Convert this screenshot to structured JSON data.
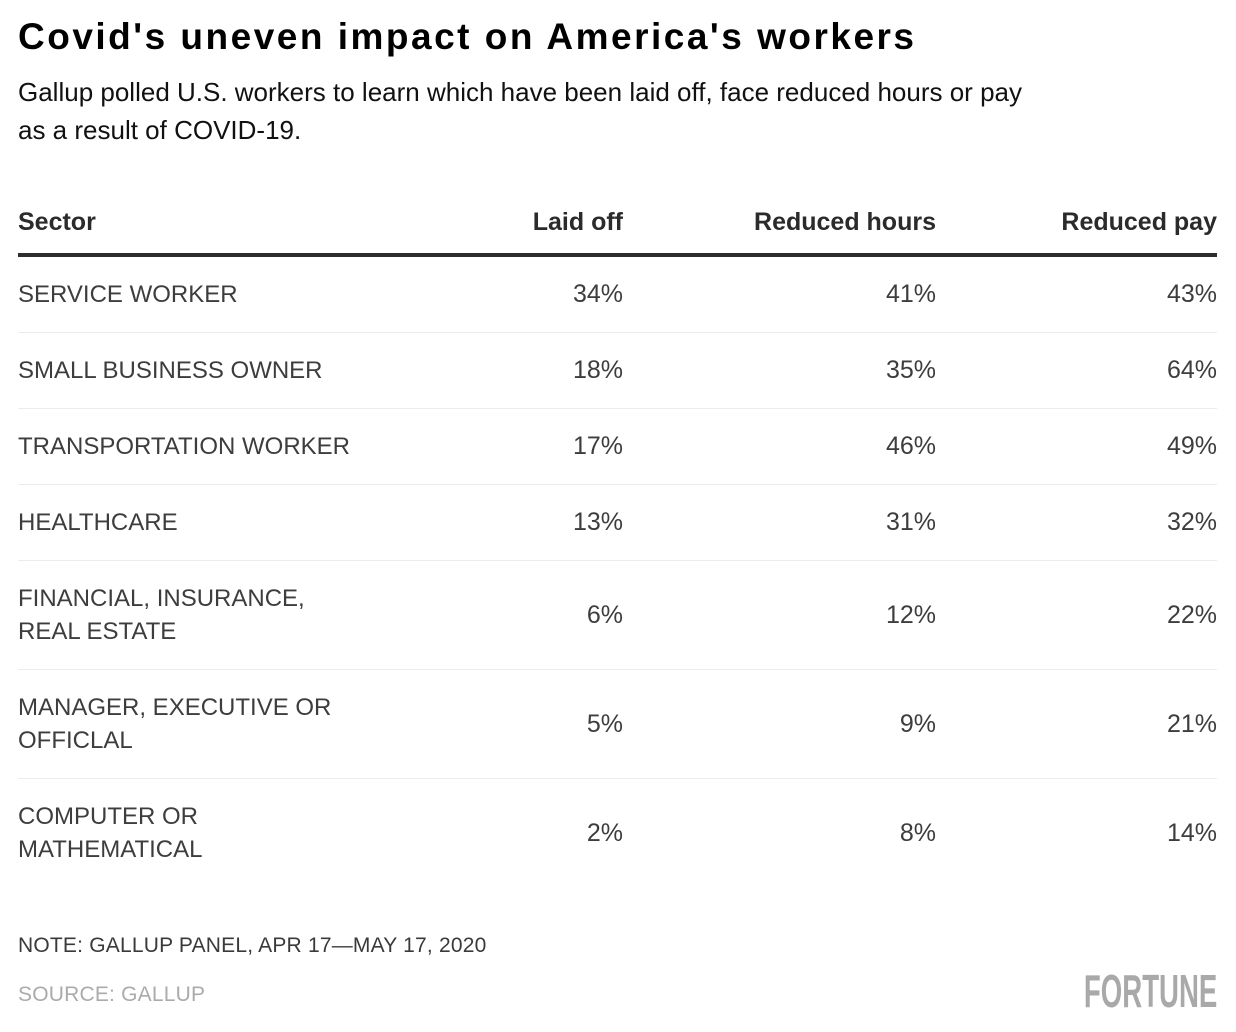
{
  "header": {
    "title": "Covid's uneven impact on America's workers",
    "subtitle_line1": "Gallup polled U.S. workers to learn which have been laid off, face reduced hours or pay",
    "subtitle_line2": "as a result of COVID-19."
  },
  "table": {
    "columns": {
      "sector": "Sector",
      "laid_off": "Laid off",
      "reduced_hours": "Reduced hours",
      "reduced_pay": "Reduced pay"
    },
    "rows": [
      {
        "sector": "SERVICE WORKER",
        "laid_off": "34%",
        "reduced_hours": "41%",
        "reduced_pay": "43%"
      },
      {
        "sector": "SMALL BUSINESS OWNER",
        "laid_off": "18%",
        "reduced_hours": "35%",
        "reduced_pay": "64%"
      },
      {
        "sector": "TRANSPORTATION WORKER",
        "laid_off": "17%",
        "reduced_hours": "46%",
        "reduced_pay": "49%"
      },
      {
        "sector": "HEALTHCARE",
        "laid_off": "13%",
        "reduced_hours": "31%",
        "reduced_pay": "32%"
      },
      {
        "sector": "FINANCIAL, INSURANCE, REAL ESTATE",
        "laid_off": "6%",
        "reduced_hours": "12%",
        "reduced_pay": "22%"
      },
      {
        "sector": "MANAGER, EXECUTIVE OR OFFICLAL",
        "laid_off": "5%",
        "reduced_hours": "9%",
        "reduced_pay": "21%"
      },
      {
        "sector": "COMPUTER OR MATHEMATICAL",
        "laid_off": "2%",
        "reduced_hours": "8%",
        "reduced_pay": "14%"
      }
    ]
  },
  "footer": {
    "note": "NOTE: GALLUP PANEL, APR 17—MAY 17, 2020",
    "source": "SOURCE: GALLUP",
    "logo": "FORTUNE"
  },
  "colors": {
    "title": "#000000",
    "header_rule": "#2e2e2e",
    "row_divider": "#ececec",
    "body_text": "#3d3d3d",
    "muted_text": "#ababab",
    "logo_gray": "#a9a9a9"
  },
  "chart_data": {
    "type": "table",
    "title": "Covid's uneven impact on America's workers",
    "subtitle": "Gallup polled U.S. workers to learn which have been laid off, face reduced hours or pay as a result of COVID-19.",
    "categories": [
      "SERVICE WORKER",
      "SMALL BUSINESS OWNER",
      "TRANSPORTATION WORKER",
      "HEALTHCARE",
      "FINANCIAL, INSURANCE, REAL ESTATE",
      "MANAGER, EXECUTIVE OR OFFICLAL",
      "COMPUTER OR MATHEMATICAL"
    ],
    "series": [
      {
        "name": "Laid off",
        "values": [
          34,
          18,
          17,
          13,
          6,
          5,
          2
        ]
      },
      {
        "name": "Reduced hours",
        "values": [
          41,
          35,
          46,
          31,
          12,
          9,
          8
        ]
      },
      {
        "name": "Reduced pay",
        "values": [
          43,
          64,
          49,
          32,
          22,
          21,
          14
        ]
      }
    ],
    "unit": "%",
    "note": "NOTE: GALLUP PANEL, APR 17—MAY 17, 2020",
    "source": "SOURCE: GALLUP"
  }
}
